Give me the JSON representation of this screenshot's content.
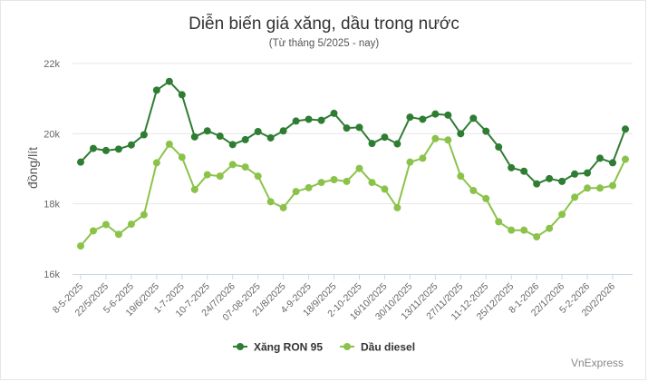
{
  "title": "Diễn biến giá xăng, dầu trong nước",
  "subtitle": "(Từ tháng 5/2025 - nay)",
  "credit": "VnExpress",
  "colors": {
    "ron95": "#2e7d32",
    "diesel": "#8bc34a",
    "grid": "#e6e6e6",
    "axis_text": "#666666"
  },
  "chart_data": {
    "type": "line",
    "title": "Diễn biến giá xăng, dầu trong nước",
    "subtitle": "(Từ tháng 5/2025 - nay)",
    "ylabel": "đồng/lít",
    "ylim": [
      16000,
      22000
    ],
    "yticks": [
      16000,
      18000,
      20000,
      22000
    ],
    "ytick_labels": [
      "16k",
      "18k",
      "20k",
      "22k"
    ],
    "grid": true,
    "legend_position": "bottom-center",
    "x_tick_labels": [
      "8-5-2025",
      "22/5/2025",
      "5-6-2025",
      "19/6/2025",
      "1-7-2025",
      "10-7-2025",
      "24/7/2026",
      "07-08-2025",
      "21/8/2025",
      "4-9-2025",
      "18/9/2025",
      "2-10-2025",
      "16/10/2025",
      "30/10/2025",
      "13/11/2025",
      "27/11/2025",
      "11-12-2025",
      "25/12/2025",
      "8-1-2026",
      "22/1/2026",
      "5-2-2026",
      "20/2/2026"
    ],
    "tick_every": 2,
    "series": [
      {
        "name": "Xăng RON 95",
        "values": [
          19190,
          19580,
          19520,
          19560,
          19680,
          19970,
          21240,
          21490,
          21110,
          19910,
          20080,
          19930,
          19690,
          19830,
          20060,
          19880,
          20080,
          20360,
          20410,
          20380,
          20580,
          20160,
          20180,
          19720,
          19900,
          19710,
          20470,
          20410,
          20560,
          20530,
          20000,
          20440,
          20070,
          19620,
          19030,
          18930,
          18570,
          18720,
          18640,
          18850,
          18880,
          19300,
          19170,
          20130
        ]
      },
      {
        "name": "Dầu diesel",
        "values": [
          16800,
          17230,
          17410,
          17130,
          17420,
          17690,
          19170,
          19700,
          19330,
          18410,
          18830,
          18790,
          19120,
          19050,
          18790,
          18060,
          17890,
          18350,
          18460,
          18610,
          18690,
          18640,
          19010,
          18610,
          18420,
          17890,
          19190,
          19300,
          19860,
          19820,
          18790,
          18380,
          18150,
          17490,
          17250,
          17250,
          17060,
          17300,
          17700,
          18190,
          18450,
          18450,
          18520,
          19270
        ]
      }
    ]
  }
}
